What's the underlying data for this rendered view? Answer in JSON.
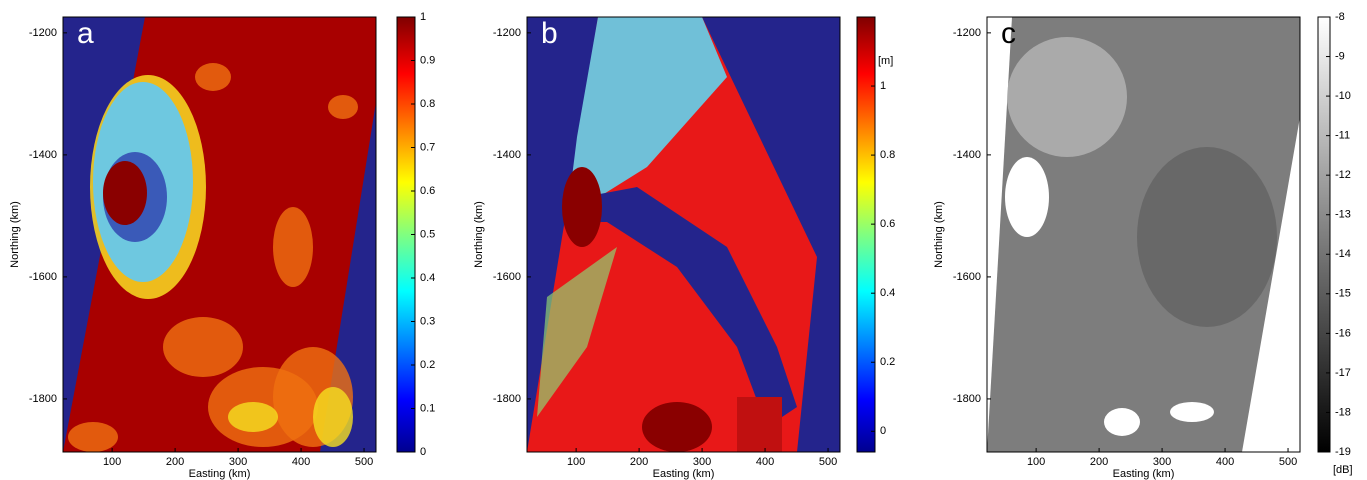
{
  "chart_data": [
    {
      "type": "heatmap",
      "panel_label": "a",
      "xlabel": "Easting (km)",
      "ylabel": "Northing (km)",
      "xlim": [
        22,
        519
      ],
      "ylim": [
        -1887,
        -1174
      ],
      "xticks": [
        100,
        200,
        300,
        400,
        500
      ],
      "yticks": [
        -1200,
        -1400,
        -1600,
        -1800
      ],
      "colormap": "jet",
      "clim": [
        0,
        1
      ],
      "cticks": [
        0,
        0.1,
        0.2,
        0.3,
        0.4,
        0.5,
        0.6,
        0.7,
        0.8,
        0.9,
        1
      ]
    },
    {
      "type": "heatmap",
      "panel_label": "b",
      "xlabel": "Easting (km)",
      "ylabel": "Northing (km)",
      "xlim": [
        22,
        519
      ],
      "ylim": [
        -1887,
        -1174
      ],
      "xticks": [
        100,
        200,
        300,
        400,
        500
      ],
      "yticks": [
        -1200,
        -1400,
        -1600,
        -1800
      ],
      "colormap": "jet",
      "clim": [
        -0.06,
        1.2
      ],
      "cticks": [
        0,
        0.2,
        0.4,
        0.6,
        0.8,
        1
      ],
      "colorbar_label": "[m]"
    },
    {
      "type": "heatmap",
      "panel_label": "c",
      "xlabel": "Easting (km)",
      "ylabel": "Northing (km)",
      "xlim": [
        22,
        519
      ],
      "ylim": [
        -1887,
        -1174
      ],
      "xticks": [
        100,
        200,
        300,
        400,
        500
      ],
      "yticks": [
        -1200,
        -1400,
        -1600,
        -1800
      ],
      "colormap": "gray",
      "clim": [
        -19,
        -8
      ],
      "cticks": [
        -8,
        -9,
        -10,
        -11,
        -12,
        -13,
        -14,
        -15,
        -16,
        -17,
        -18,
        -19
      ],
      "colorbar_label": "[dB]"
    }
  ]
}
